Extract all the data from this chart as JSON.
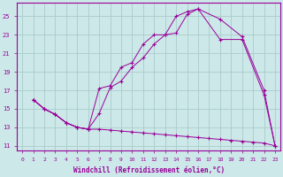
{
  "xlabel": "Windchill (Refroidissement éolien,°C)",
  "background_color": "#cce8e8",
  "grid_color": "#aacccc",
  "line_color": "#990099",
  "xlim": [
    -0.5,
    23.5
  ],
  "ylim": [
    10.5,
    26.5
  ],
  "xticks": [
    0,
    1,
    2,
    3,
    4,
    5,
    6,
    7,
    8,
    9,
    10,
    11,
    12,
    13,
    14,
    15,
    16,
    17,
    18,
    19,
    20,
    21,
    22,
    23
  ],
  "yticks": [
    11,
    13,
    15,
    17,
    19,
    21,
    23,
    25
  ],
  "series1_x": [
    1,
    2,
    3,
    4,
    5,
    6,
    7,
    8,
    9,
    10,
    11,
    12,
    13,
    14,
    15,
    16,
    18,
    20,
    22,
    23
  ],
  "series1_y": [
    16.0,
    15.0,
    14.4,
    13.5,
    13.0,
    12.8,
    17.2,
    17.5,
    19.5,
    20.0,
    22.0,
    23.0,
    23.0,
    25.0,
    25.5,
    25.8,
    24.7,
    22.8,
    17.0,
    11.0
  ],
  "series2_x": [
    1,
    2,
    3,
    4,
    5,
    6,
    7,
    8,
    9,
    10,
    11,
    12,
    13,
    14,
    15,
    16,
    18,
    20,
    22,
    23
  ],
  "series2_y": [
    16.0,
    15.0,
    14.4,
    13.5,
    13.0,
    12.8,
    14.5,
    17.3,
    18.0,
    19.5,
    20.5,
    22.0,
    23.0,
    23.2,
    25.2,
    25.8,
    22.5,
    22.5,
    16.5,
    11.0
  ],
  "series3_x": [
    1,
    2,
    3,
    4,
    5,
    6,
    7,
    8,
    9,
    10,
    11,
    12,
    13,
    14,
    15,
    16,
    17,
    18,
    19,
    20,
    21,
    22,
    23
  ],
  "series3_y": [
    16.0,
    15.0,
    14.4,
    13.5,
    13.0,
    12.8,
    12.8,
    12.7,
    12.6,
    12.5,
    12.4,
    12.3,
    12.2,
    12.1,
    12.0,
    11.9,
    11.8,
    11.7,
    11.6,
    11.5,
    11.4,
    11.3,
    11.0
  ]
}
